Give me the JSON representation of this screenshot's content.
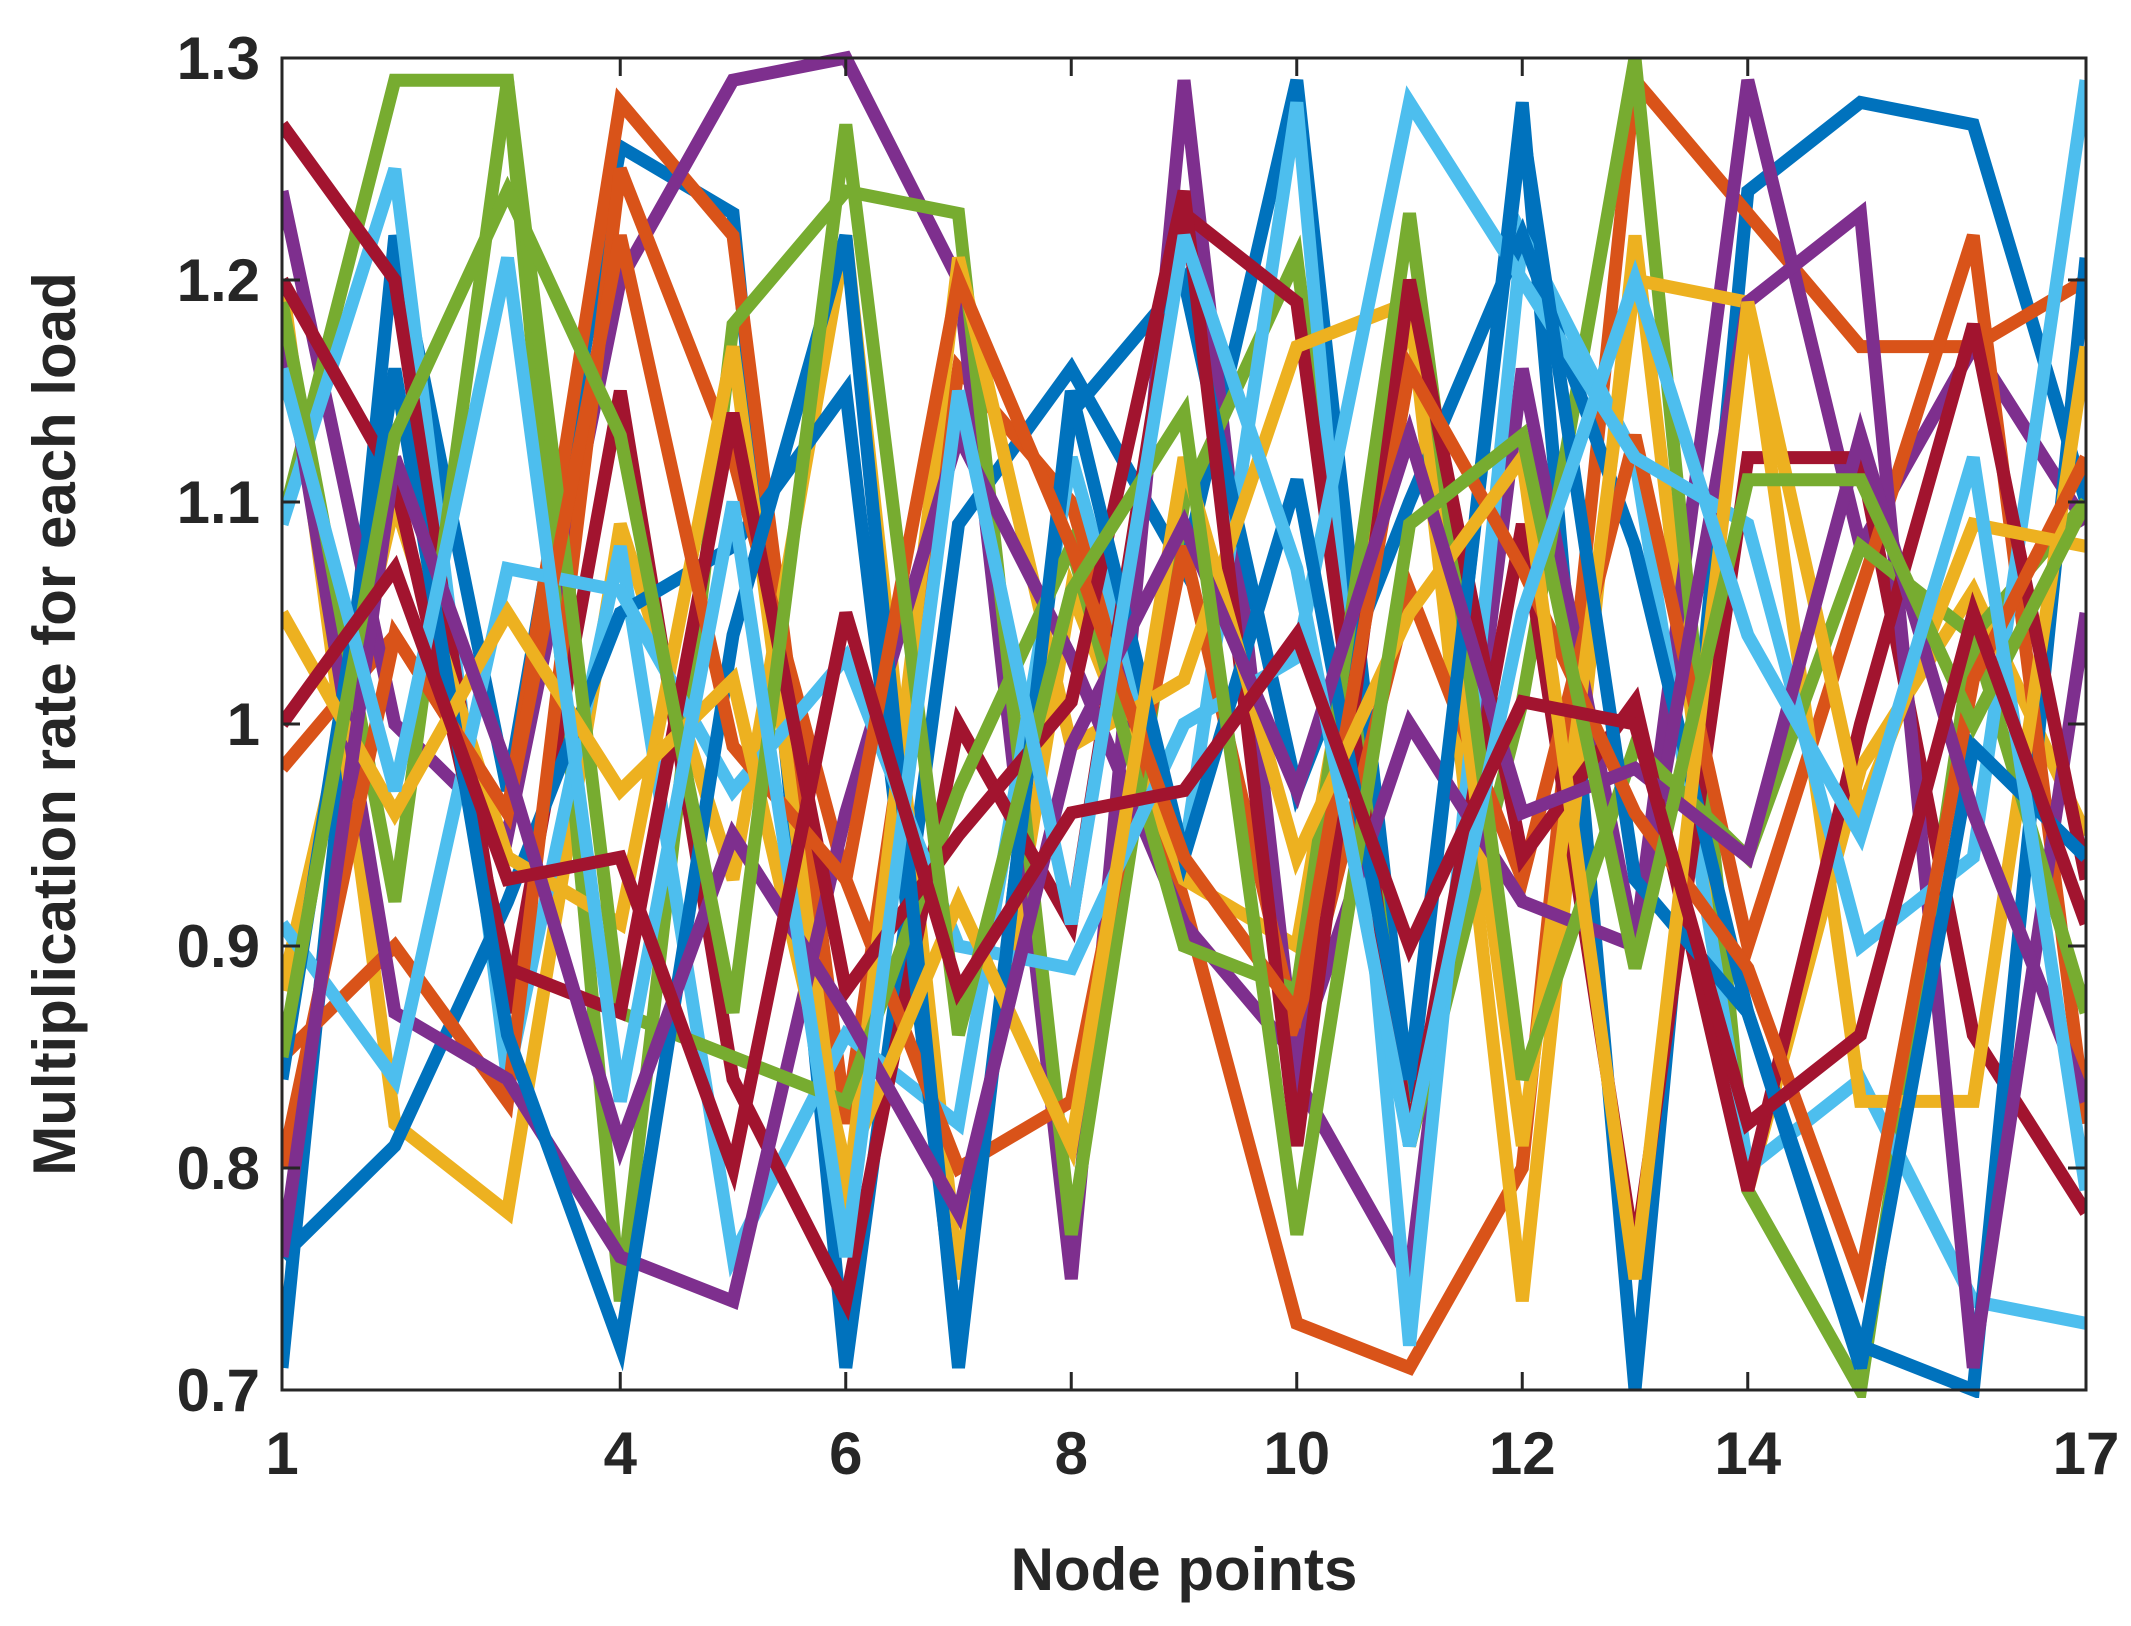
{
  "chart_data": {
    "type": "line",
    "title": "",
    "xlabel": "Node points",
    "ylabel": "Multiplication rate for each load",
    "xlim": [
      1,
      17
    ],
    "ylim": [
      0.7,
      1.3
    ],
    "xticks": [
      1,
      4,
      6,
      8,
      10,
      12,
      14,
      17
    ],
    "xtick_labels": [
      "1",
      "4",
      "6",
      "8",
      "10",
      "12",
      "14",
      "17"
    ],
    "yticks": [
      0.7,
      0.8,
      0.9,
      1.0,
      1.1,
      1.2,
      1.3
    ],
    "ytick_labels": [
      "0.7",
      "0.8",
      "0.9",
      "1",
      "1.1",
      "1.2",
      "1.3"
    ],
    "grid": false,
    "legend": "none",
    "x": [
      1,
      2,
      3,
      4,
      5,
      6,
      7,
      8,
      9,
      10,
      11,
      12,
      13,
      14,
      15,
      16,
      17
    ],
    "series": [
      {
        "color": "#0072BD",
        "values": [
          0.71,
          1.22,
          0.97,
          1.26,
          1.23,
          0.71,
          1.09,
          1.16,
          1.07,
          1.29,
          0.83,
          1.28,
          0.7,
          1.24,
          1.28,
          1.27,
          1.1
        ]
      },
      {
        "color": "#D95319",
        "values": [
          0.98,
          1.04,
          0.96,
          1.28,
          1.22,
          0.82,
          1.16,
          1.1,
          0.92,
          0.73,
          0.71,
          0.8,
          1.29,
          1.23,
          1.17,
          1.17,
          1.2
        ]
      },
      {
        "color": "#EDB120",
        "values": [
          1.2,
          0.82,
          0.78,
          1.09,
          0.93,
          1.22,
          0.75,
          1.06,
          0.93,
          0.9,
          1.19,
          0.74,
          1.22,
          0.79,
          0.98,
          1.06,
          0.95
        ]
      },
      {
        "color": "#7E2F8E",
        "values": [
          1.24,
          1.0,
          0.95,
          1.2,
          1.29,
          1.3,
          1.2,
          0.75,
          1.29,
          0.84,
          0.75,
          1.16,
          0.9,
          1.29,
          1.08,
          1.17,
          1.09
        ]
      },
      {
        "color": "#77AC30",
        "values": [
          1.09,
          1.29,
          1.29,
          0.74,
          1.18,
          1.24,
          1.23,
          0.77,
          1.1,
          1.21,
          0.81,
          1.01,
          1.3,
          0.79,
          0.7,
          1.04,
          1.1
        ]
      },
      {
        "color": "#4DBEEE",
        "values": [
          1.09,
          1.25,
          0.84,
          1.08,
          0.76,
          0.86,
          0.82,
          1.12,
          0.94,
          1.28,
          0.72,
          1.22,
          1.12,
          0.8,
          0.84,
          0.74,
          0.73
        ]
      },
      {
        "color": "#A2142F",
        "values": [
          1.27,
          1.2,
          0.87,
          1.15,
          0.84,
          0.74,
          1.0,
          0.91,
          1.23,
          1.19,
          0.81,
          1.09,
          0.76,
          1.12,
          1.12,
          0.86,
          0.78
        ]
      },
      {
        "color": "#0072BD",
        "values": [
          0.76,
          0.81,
          0.92,
          1.05,
          1.08,
          1.15,
          0.72,
          1.14,
          1.2,
          0.97,
          1.1,
          1.22,
          1.08,
          0.87,
          0.72,
          0.7,
          1.21
        ]
      },
      {
        "color": "#D95319",
        "values": [
          0.85,
          0.9,
          0.83,
          1.25,
          1.12,
          0.93,
          0.8,
          0.83,
          1.08,
          0.86,
          1.06,
          0.93,
          1.13,
          0.9,
          1.06,
          1.22,
          0.82
        ]
      },
      {
        "color": "#EDB120",
        "values": [
          0.88,
          1.1,
          0.94,
          0.91,
          1.17,
          0.78,
          1.21,
          0.99,
          1.02,
          1.17,
          1.19,
          0.81,
          1.2,
          1.19,
          0.83,
          0.83,
          1.17
        ]
      },
      {
        "color": "#7E2F8E",
        "values": [
          1.18,
          0.87,
          0.84,
          0.76,
          0.74,
          0.96,
          1.13,
          1.03,
          0.91,
          0.85,
          1.0,
          0.92,
          0.9,
          1.19,
          1.23,
          0.71,
          1.05
        ]
      },
      {
        "color": "#77AC30",
        "values": [
          1.19,
          0.92,
          1.29,
          0.87,
          0.85,
          0.83,
          0.97,
          1.08,
          0.9,
          0.88,
          1.23,
          0.84,
          0.99,
          0.94,
          1.08,
          1.04,
          0.87
        ]
      },
      {
        "color": "#4DBEEE",
        "values": [
          0.91,
          0.84,
          1.07,
          1.06,
          0.97,
          1.03,
          0.9,
          0.89,
          1.0,
          1.03,
          1.28,
          1.2,
          1.12,
          1.09,
          0.9,
          0.94,
          1.29
        ]
      },
      {
        "color": "#A2142F",
        "values": [
          1.2,
          1.11,
          0.89,
          0.87,
          1.14,
          0.88,
          0.95,
          1.01,
          1.24,
          0.81,
          1.2,
          0.94,
          1.01,
          0.79,
          1.0,
          1.18,
          0.93
        ]
      },
      {
        "color": "#0072BD",
        "values": [
          0.84,
          1.16,
          0.86,
          0.72,
          1.04,
          1.22,
          0.71,
          1.15,
          0.94,
          1.11,
          0.84,
          1.27,
          0.93,
          0.87,
          0.71,
          0.99,
          0.94
        ]
      },
      {
        "color": "#D95319",
        "values": [
          0.8,
          1.04,
          0.96,
          1.22,
          0.99,
          0.93,
          1.2,
          1.08,
          0.94,
          0.87,
          1.16,
          1.07,
          0.96,
          0.89,
          0.75,
          1.02,
          1.12
        ]
      },
      {
        "color": "#EDB120",
        "values": [
          1.05,
          0.96,
          1.05,
          0.97,
          1.02,
          0.8,
          0.92,
          0.81,
          1.12,
          0.94,
          1.05,
          1.12,
          0.75,
          1.19,
          0.96,
          1.09,
          1.08
        ]
      },
      {
        "color": "#7E2F8E",
        "values": [
          0.76,
          1.12,
          0.98,
          0.81,
          0.95,
          0.87,
          0.78,
          0.99,
          1.09,
          0.97,
          1.13,
          0.96,
          0.98,
          0.94,
          1.13,
          0.96,
          0.83
        ]
      },
      {
        "color": "#77AC30",
        "values": [
          0.85,
          1.13,
          1.24,
          1.13,
          0.87,
          1.27,
          0.86,
          1.06,
          1.14,
          0.77,
          1.09,
          1.13,
          0.89,
          1.11,
          1.11,
          1.0,
          1.1
        ]
      },
      {
        "color": "#4DBEEE",
        "values": [
          1.16,
          0.97,
          1.21,
          0.83,
          1.1,
          0.76,
          1.15,
          0.91,
          1.22,
          1.07,
          0.81,
          1.05,
          1.2,
          1.04,
          0.95,
          1.12,
          0.79
        ]
      },
      {
        "color": "#A2142F",
        "values": [
          1.0,
          1.07,
          0.93,
          0.94,
          0.8,
          1.05,
          0.88,
          0.96,
          0.97,
          1.04,
          0.9,
          1.01,
          1.0,
          0.82,
          0.86,
          1.05,
          0.91
        ]
      }
    ]
  }
}
